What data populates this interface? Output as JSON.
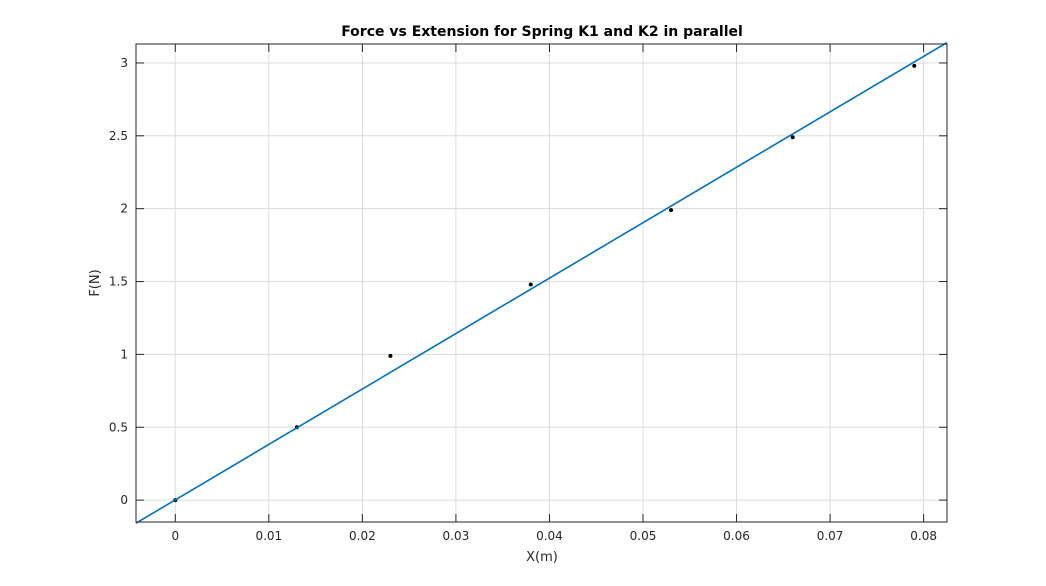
{
  "chart_data": {
    "type": "scatter",
    "title": "Force vs Extension for Spring K1 and K2 in parallel",
    "xlabel": "X(m)",
    "ylabel": "F(N)",
    "xlim": [
      -0.0042,
      0.0825
    ],
    "ylim": [
      -0.15,
      3.13
    ],
    "xticks": [
      0,
      0.01,
      0.02,
      0.03,
      0.04,
      0.05,
      0.06,
      0.07,
      0.08
    ],
    "xtick_labels": [
      "0",
      "0.01",
      "0.02",
      "0.03",
      "0.04",
      "0.05",
      "0.06",
      "0.07",
      "0.08"
    ],
    "yticks": [
      0,
      0.5,
      1,
      1.5,
      2,
      2.5,
      3
    ],
    "ytick_labels": [
      "0",
      "0.5",
      "1",
      "1.5",
      "2",
      "2.5",
      "3"
    ],
    "grid": true,
    "series": [
      {
        "kind": "points",
        "color": "#000000",
        "x": [
          0,
          0.013,
          0.023,
          0.038,
          0.053,
          0.066,
          0.079
        ],
        "y": [
          0,
          0.5,
          0.99,
          1.48,
          1.99,
          2.49,
          2.98
        ]
      },
      {
        "kind": "line",
        "color": "#0072bd",
        "x": [
          -0.0042,
          0.0825
        ],
        "y": [
          -0.158,
          3.14
        ]
      }
    ]
  }
}
